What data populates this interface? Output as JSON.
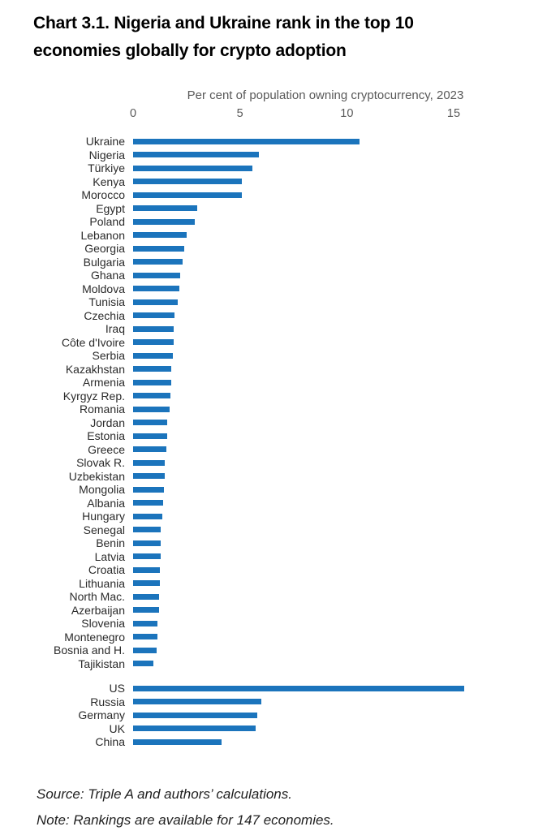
{
  "header": {
    "title_line1": "Chart 3.1. Nigeria and Ukraine rank in the top 10",
    "title_line2": "economies globally for crypto adoption"
  },
  "chart_data": {
    "type": "bar",
    "orientation": "horizontal",
    "title": "Chart 3.1. Nigeria and Ukraine rank in the top 10 economies globally for crypto adoption",
    "axis_title": "Per cent of population owning cryptocurrency, 2023",
    "x_ticks": [
      0,
      5,
      10,
      15
    ],
    "xlim": [
      0,
      18
    ],
    "grid": false,
    "legend": false,
    "bar_color": "#1b74bc",
    "groups": [
      {
        "name": "ranked-economies",
        "categories": [
          "Ukraine",
          "Nigeria",
          "Türkiye",
          "Kenya",
          "Morocco",
          "Egypt",
          "Poland",
          "Lebanon",
          "Georgia",
          "Bulgaria",
          "Ghana",
          "Moldova",
          "Tunisia",
          "Czechia",
          "Iraq",
          "Côte d'Ivoire",
          "Serbia",
          "Kazakhstan",
          "Armenia",
          "Kyrgyz Rep.",
          "Romania",
          "Jordan",
          "Estonia",
          "Greece",
          "Slovak R.",
          "Uzbekistan",
          "Mongolia",
          "Albania",
          "Hungary",
          "Senegal",
          "Benin",
          "Latvia",
          "Croatia",
          "Lithuania",
          "North Mac.",
          "Azerbaijan",
          "Slovenia",
          "Montenegro",
          "Bosnia and H.",
          "Tajikistan"
        ],
        "values": [
          10.6,
          5.9,
          5.6,
          5.1,
          5.1,
          3.0,
          2.9,
          2.5,
          2.4,
          2.3,
          2.2,
          2.15,
          2.1,
          1.95,
          1.9,
          1.9,
          1.85,
          1.8,
          1.8,
          1.75,
          1.7,
          1.6,
          1.6,
          1.55,
          1.5,
          1.5,
          1.45,
          1.4,
          1.35,
          1.3,
          1.3,
          1.3,
          1.25,
          1.25,
          1.2,
          1.2,
          1.15,
          1.15,
          1.1,
          0.95
        ]
      },
      {
        "name": "comparator-economies",
        "categories": [
          "US",
          "Russia",
          "Germany",
          "UK",
          "China"
        ],
        "values": [
          15.5,
          6.0,
          5.8,
          5.75,
          4.15
        ]
      }
    ]
  },
  "footer": {
    "source_text": "Source: Triple A and authors’ calculations.",
    "note_text": "Note: Rankings are available for 147 economies."
  }
}
